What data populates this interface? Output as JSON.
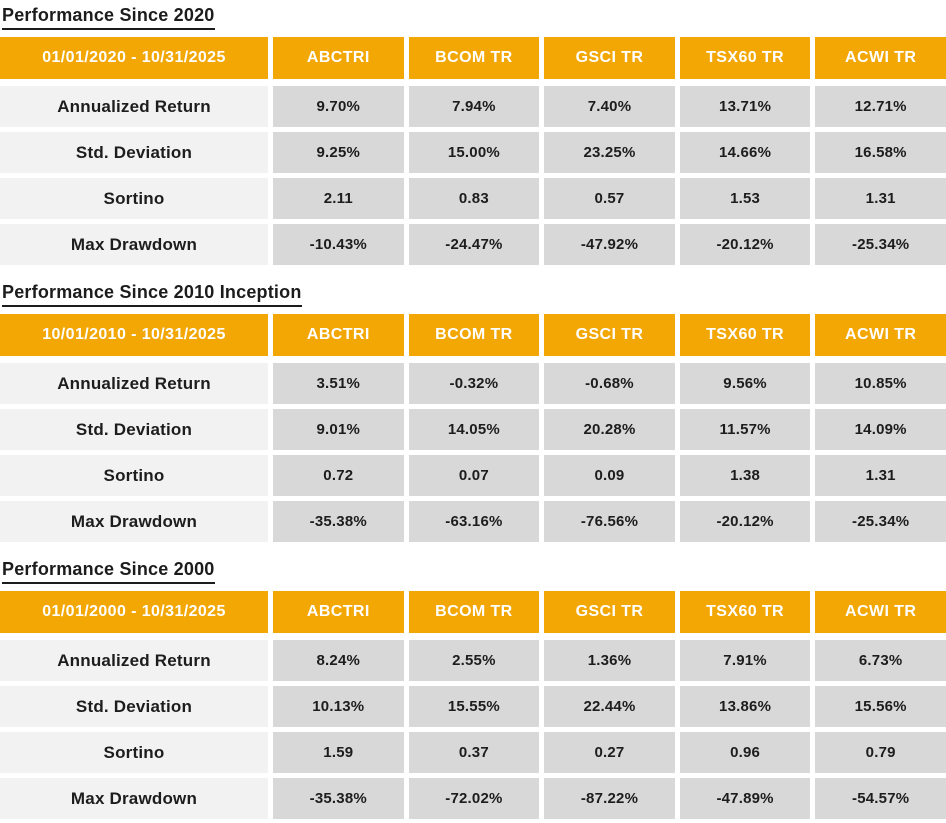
{
  "colors": {
    "header_bg": "#f2a705",
    "header_text": "#ffffff",
    "label_cell_bg": "#f2f2f2",
    "value_cell_bg": "#d8d8d8",
    "text": "#1c1c1c"
  },
  "sections": [
    {
      "title": "Performance Since 2020",
      "date_range": "01/01/2020 - 10/31/2025",
      "columns": [
        "ABCTRI",
        "BCOM TR",
        "GSCI TR",
        "TSX60 TR",
        "ACWI TR"
      ],
      "rows": [
        {
          "label": "Annualized Return",
          "values": [
            "9.70%",
            "7.94%",
            "7.40%",
            "13.71%",
            "12.71%"
          ]
        },
        {
          "label": "Std. Deviation",
          "values": [
            "9.25%",
            "15.00%",
            "23.25%",
            "14.66%",
            "16.58%"
          ]
        },
        {
          "label": "Sortino",
          "values": [
            "2.11",
            "0.83",
            "0.57",
            "1.53",
            "1.31"
          ]
        },
        {
          "label": "Max Drawdown",
          "values": [
            "-10.43%",
            "-24.47%",
            "-47.92%",
            "-20.12%",
            "-25.34%"
          ]
        }
      ]
    },
    {
      "title": "Performance Since 2010 Inception",
      "date_range": "10/01/2010 - 10/31/2025",
      "columns": [
        "ABCTRI",
        "BCOM TR",
        "GSCI TR",
        "TSX60 TR",
        "ACWI TR"
      ],
      "rows": [
        {
          "label": "Annualized Return",
          "values": [
            "3.51%",
            "-0.32%",
            "-0.68%",
            "9.56%",
            "10.85%"
          ]
        },
        {
          "label": "Std. Deviation",
          "values": [
            "9.01%",
            "14.05%",
            "20.28%",
            "11.57%",
            "14.09%"
          ]
        },
        {
          "label": "Sortino",
          "values": [
            "0.72",
            "0.07",
            "0.09",
            "1.38",
            "1.31"
          ]
        },
        {
          "label": "Max Drawdown",
          "values": [
            "-35.38%",
            "-63.16%",
            "-76.56%",
            "-20.12%",
            "-25.34%"
          ]
        }
      ]
    },
    {
      "title": "Performance Since 2000",
      "date_range": "01/01/2000 - 10/31/2025",
      "columns": [
        "ABCTRI",
        "BCOM TR",
        "GSCI TR",
        "TSX60 TR",
        "ACWI TR"
      ],
      "rows": [
        {
          "label": "Annualized Return",
          "values": [
            "8.24%",
            "2.55%",
            "1.36%",
            "7.91%",
            "6.73%"
          ]
        },
        {
          "label": "Std. Deviation",
          "values": [
            "10.13%",
            "15.55%",
            "22.44%",
            "13.86%",
            "15.56%"
          ]
        },
        {
          "label": "Sortino",
          "values": [
            "1.59",
            "0.37",
            "0.27",
            "0.96",
            "0.79"
          ]
        },
        {
          "label": "Max Drawdown",
          "values": [
            "-35.38%",
            "-72.02%",
            "-87.22%",
            "-47.89%",
            "-54.57%"
          ]
        }
      ]
    }
  ],
  "chart_data": [
    {
      "type": "table",
      "title": "Performance Since 2020",
      "columns": [
        "01/01/2020 - 10/31/2025",
        "ABCTRI",
        "BCOM TR",
        "GSCI TR",
        "TSX60 TR",
        "ACWI TR"
      ],
      "rows": [
        [
          "Annualized Return",
          "9.70%",
          "7.94%",
          "7.40%",
          "13.71%",
          "12.71%"
        ],
        [
          "Std. Deviation",
          "9.25%",
          "15.00%",
          "23.25%",
          "14.66%",
          "16.58%"
        ],
        [
          "Sortino",
          "2.11",
          "0.83",
          "0.57",
          "1.53",
          "1.31"
        ],
        [
          "Max Drawdown",
          "-10.43%",
          "-24.47%",
          "-47.92%",
          "-20.12%",
          "-25.34%"
        ]
      ]
    },
    {
      "type": "table",
      "title": "Performance Since 2010 Inception",
      "columns": [
        "10/01/2010 - 10/31/2025",
        "ABCTRI",
        "BCOM TR",
        "GSCI TR",
        "TSX60 TR",
        "ACWI TR"
      ],
      "rows": [
        [
          "Annualized Return",
          "3.51%",
          "-0.32%",
          "-0.68%",
          "9.56%",
          "10.85%"
        ],
        [
          "Std. Deviation",
          "9.01%",
          "14.05%",
          "20.28%",
          "11.57%",
          "14.09%"
        ],
        [
          "Sortino",
          "0.72",
          "0.07",
          "0.09",
          "1.38",
          "1.31"
        ],
        [
          "Max Drawdown",
          "-35.38%",
          "-63.16%",
          "-76.56%",
          "-20.12%",
          "-25.34%"
        ]
      ]
    },
    {
      "type": "table",
      "title": "Performance Since 2000",
      "columns": [
        "01/01/2000 - 10/31/2025",
        "ABCTRI",
        "BCOM TR",
        "GSCI TR",
        "TSX60 TR",
        "ACWI TR"
      ],
      "rows": [
        [
          "Annualized Return",
          "8.24%",
          "2.55%",
          "1.36%",
          "7.91%",
          "6.73%"
        ],
        [
          "Std. Deviation",
          "10.13%",
          "15.55%",
          "22.44%",
          "13.86%",
          "15.56%"
        ],
        [
          "Sortino",
          "1.59",
          "0.37",
          "0.27",
          "0.96",
          "0.79"
        ],
        [
          "Max Drawdown",
          "-35.38%",
          "-72.02%",
          "-87.22%",
          "-47.89%",
          "-54.57%"
        ]
      ]
    }
  ]
}
